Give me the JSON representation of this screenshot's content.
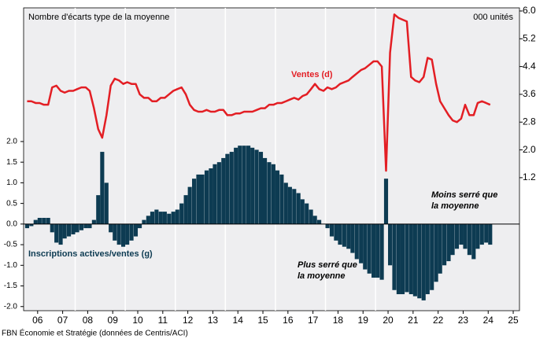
{
  "chart_data": {
    "type": "bar",
    "subtitle_left": "Nombre d'écarts type de la moyenne",
    "subtitle_right": "000 unités",
    "annotations": [
      "Plus serré que",
      "la moyenne",
      "Moins serré que",
      "la moyenne"
    ],
    "source": "FBN Économie et Stratégie (données de Centris/ACI)",
    "x": [
      2006.08,
      2006.25,
      2006.42,
      2006.58,
      2006.75,
      2006.92,
      2007.08,
      2007.25,
      2007.42,
      2007.58,
      2007.75,
      2007.92,
      2008.08,
      2008.25,
      2008.42,
      2008.58,
      2008.75,
      2008.92,
      2009.08,
      2009.25,
      2009.42,
      2009.58,
      2009.75,
      2009.92,
      2010.08,
      2010.25,
      2010.42,
      2010.58,
      2010.75,
      2010.92,
      2011.08,
      2011.25,
      2011.42,
      2011.58,
      2011.75,
      2011.92,
      2012.08,
      2012.25,
      2012.42,
      2012.58,
      2012.75,
      2012.92,
      2013.08,
      2013.25,
      2013.42,
      2013.58,
      2013.75,
      2013.92,
      2014.08,
      2014.25,
      2014.42,
      2014.58,
      2014.75,
      2014.92,
      2015.08,
      2015.25,
      2015.42,
      2015.58,
      2015.75,
      2015.92,
      2016.08,
      2016.25,
      2016.42,
      2016.58,
      2016.75,
      2016.92,
      2017.08,
      2017.25,
      2017.42,
      2017.58,
      2017.75,
      2017.92,
      2018.08,
      2018.25,
      2018.42,
      2018.58,
      2018.75,
      2018.92,
      2019.08,
      2019.25,
      2019.42,
      2019.58,
      2019.75,
      2019.92,
      2020.08,
      2020.25,
      2020.42,
      2020.58,
      2020.75,
      2020.92,
      2021.08,
      2021.25,
      2021.42,
      2021.58,
      2021.75,
      2021.92,
      2022.08,
      2022.25,
      2022.42,
      2022.58,
      2022.75,
      2022.92,
      2023.08,
      2023.25,
      2023.42,
      2023.58,
      2023.75,
      2023.92,
      2024.08,
      2024.25,
      2024.42,
      2024.58
    ],
    "series": [
      {
        "name": "Inscriptions actives/ventes (g)",
        "type": "bar",
        "color": "#0d3b52",
        "values": [
          -0.1,
          -0.05,
          0.1,
          0.15,
          0.15,
          0.15,
          -0.2,
          -0.45,
          -0.5,
          -0.35,
          -0.3,
          -0.25,
          -0.2,
          -0.15,
          -0.1,
          -0.1,
          0.1,
          0.7,
          1.75,
          1.0,
          -0.2,
          -0.4,
          -0.5,
          -0.55,
          -0.5,
          -0.4,
          -0.3,
          -0.1,
          0.1,
          0.2,
          0.3,
          0.35,
          0.3,
          0.3,
          0.25,
          0.3,
          0.35,
          0.5,
          0.7,
          0.9,
          1.1,
          1.2,
          1.2,
          1.3,
          1.35,
          1.45,
          1.5,
          1.6,
          1.7,
          1.75,
          1.85,
          1.9,
          1.9,
          1.9,
          1.85,
          1.8,
          1.75,
          1.6,
          1.5,
          1.45,
          1.3,
          1.2,
          1.0,
          0.9,
          0.85,
          0.75,
          0.6,
          0.5,
          0.35,
          0.2,
          0.1,
          0.0,
          -0.1,
          -0.3,
          -0.4,
          -0.5,
          -0.55,
          -0.6,
          -0.7,
          -0.85,
          -0.95,
          -1.1,
          -1.2,
          -1.3,
          -1.3,
          -1.35,
          1.1,
          -1.0,
          -1.6,
          -1.7,
          -1.7,
          -1.65,
          -1.7,
          -1.75,
          -1.8,
          -1.85,
          -1.7,
          -1.6,
          -1.4,
          -1.2,
          -1.0,
          -0.9,
          -0.75,
          -0.6,
          -0.5,
          -0.6,
          -0.75,
          -0.85,
          -0.6,
          -0.5,
          -0.45,
          -0.5
        ]
      },
      {
        "name": "Ventes (d)",
        "type": "line",
        "axis": "y2",
        "color": "#e31e24",
        "values": [
          3.4,
          3.4,
          3.35,
          3.35,
          3.3,
          3.3,
          3.8,
          3.85,
          3.7,
          3.65,
          3.7,
          3.7,
          3.75,
          3.8,
          3.8,
          3.7,
          3.2,
          2.6,
          2.35,
          3.0,
          3.85,
          4.05,
          4.0,
          3.9,
          3.95,
          3.9,
          3.9,
          3.6,
          3.5,
          3.5,
          3.4,
          3.4,
          3.5,
          3.5,
          3.6,
          3.7,
          3.75,
          3.8,
          3.6,
          3.3,
          3.15,
          3.1,
          3.1,
          3.15,
          3.1,
          3.1,
          3.15,
          3.15,
          3.0,
          3.0,
          3.05,
          3.05,
          3.1,
          3.1,
          3.1,
          3.15,
          3.2,
          3.2,
          3.3,
          3.3,
          3.35,
          3.35,
          3.4,
          3.45,
          3.5,
          3.45,
          3.55,
          3.6,
          3.75,
          3.9,
          3.75,
          3.7,
          3.8,
          3.75,
          3.8,
          3.9,
          3.95,
          4.0,
          4.1,
          4.2,
          4.3,
          4.35,
          4.45,
          4.55,
          4.55,
          4.4,
          1.4,
          4.8,
          5.9,
          5.8,
          5.75,
          5.7,
          4.1,
          4.0,
          3.95,
          4.1,
          4.65,
          4.6,
          3.9,
          3.4,
          3.2,
          3.0,
          2.85,
          2.8,
          2.9,
          3.3,
          3.0,
          3.0,
          3.35,
          3.4,
          3.35,
          3.3
        ]
      }
    ],
    "xlim": [
      2005.94,
      2025.75
    ],
    "xticks": [
      {
        "value": 2006.5,
        "label": "06"
      },
      {
        "value": 2007.5,
        "label": "07"
      },
      {
        "value": 2008.5,
        "label": "08"
      },
      {
        "value": 2009.5,
        "label": "09"
      },
      {
        "value": 2010.5,
        "label": "10"
      },
      {
        "value": 2011.5,
        "label": "11"
      },
      {
        "value": 2012.5,
        "label": "12"
      },
      {
        "value": 2013.5,
        "label": "13"
      },
      {
        "value": 2014.5,
        "label": "14"
      },
      {
        "value": 2015.5,
        "label": "15"
      },
      {
        "value": 2016.5,
        "label": "16"
      },
      {
        "value": 2017.5,
        "label": "17"
      },
      {
        "value": 2018.5,
        "label": "18"
      },
      {
        "value": 2019.5,
        "label": "19"
      },
      {
        "value": 2020.5,
        "label": "20"
      },
      {
        "value": 2021.5,
        "label": "21"
      },
      {
        "value": 2022.5,
        "label": "22"
      },
      {
        "value": 2023.5,
        "label": "23"
      },
      {
        "value": 2024.5,
        "label": "24"
      },
      {
        "value": 2025.5,
        "label": "25"
      }
    ],
    "x_gridlines": [
      2008,
      2010,
      2012,
      2014,
      2016,
      2018,
      2020
    ],
    "ylim": [
      -2.1,
      5.24
    ],
    "yticks": [
      {
        "value": -2.0,
        "label": "-2.0"
      },
      {
        "value": -1.5,
        "label": "-1.5"
      },
      {
        "value": -1.0,
        "label": "-1.0"
      },
      {
        "value": -0.5,
        "label": "-0.5"
      },
      {
        "value": 0,
        "label": "0.0"
      },
      {
        "value": 0.5,
        "label": "0.5"
      },
      {
        "value": 1.0,
        "label": "1.0"
      },
      {
        "value": 1.5,
        "label": "1.5"
      },
      {
        "value": 2.0,
        "label": "2.0"
      }
    ],
    "y2lim": [
      -2.63,
      6.09
    ],
    "y2ticks": [
      1.2,
      {
        "value": 2.0,
        "label": "2.0"
      },
      2.8,
      3.6,
      4.4,
      5.2,
      {
        "value": 6.0,
        "label": "6.0"
      }
    ]
  }
}
